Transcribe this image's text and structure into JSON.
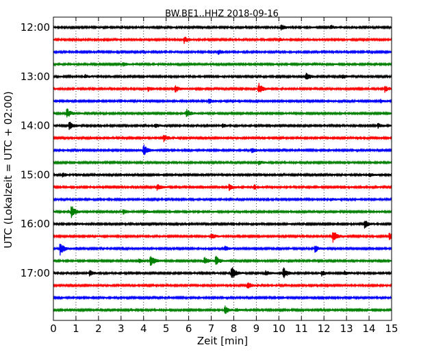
{
  "chart_data": {
    "type": "line",
    "title": "BW.BE1..HHZ 2018-09-16",
    "xlabel": "Zeit  [min]",
    "ylabel": "UTC (Lokalzeit = UTC + 02:00)",
    "xlim": [
      0,
      15
    ],
    "x_ticks": [
      "0",
      "1",
      "2",
      "3",
      "4",
      "5",
      "6",
      "7",
      "8",
      "9",
      "10",
      "11",
      "12",
      "13",
      "14",
      "15"
    ],
    "y_ticks": [
      "12:00",
      "13:00",
      "14:00",
      "15:00",
      "16:00",
      "17:00"
    ],
    "row_interval_minutes": 15,
    "grid": "vertical dotted at each minute",
    "series_colors": [
      "#000000",
      "#ff0000",
      "#0000ff",
      "#008000"
    ],
    "traces": [
      {
        "start": "12:00",
        "events": [
          {
            "t": 10.1,
            "a": 0.35
          },
          {
            "t": 12.3,
            "a": 0.3
          }
        ]
      },
      {
        "start": "12:15",
        "events": [
          {
            "t": 5.8,
            "a": 0.5
          },
          {
            "t": 10.0,
            "a": 0.2
          }
        ]
      },
      {
        "start": "12:30",
        "events": [
          {
            "t": 7.3,
            "a": 0.35
          }
        ]
      },
      {
        "start": "12:45",
        "events": [
          {
            "t": 3.1,
            "a": 0.2
          }
        ]
      },
      {
        "start": "13:00",
        "events": [
          {
            "t": 1.4,
            "a": 0.25
          },
          {
            "t": 11.2,
            "a": 0.6
          },
          {
            "t": 12.8,
            "a": 0.3
          }
        ]
      },
      {
        "start": "13:15",
        "events": [
          {
            "t": 4.2,
            "a": 0.3
          },
          {
            "t": 5.4,
            "a": 0.45
          },
          {
            "t": 9.1,
            "a": 0.8
          },
          {
            "t": 14.7,
            "a": 0.4
          }
        ]
      },
      {
        "start": "13:30",
        "events": [
          {
            "t": 6.9,
            "a": 0.3
          },
          {
            "t": 14.5,
            "a": 0.25
          }
        ]
      },
      {
        "start": "13:45",
        "events": [
          {
            "t": 0.6,
            "a": 0.65
          },
          {
            "t": 5.9,
            "a": 0.55
          }
        ]
      },
      {
        "start": "14:00",
        "events": [
          {
            "t": 0.7,
            "a": 0.55
          },
          {
            "t": 4.5,
            "a": 0.25
          },
          {
            "t": 7.5,
            "a": 0.25
          },
          {
            "t": 14.4,
            "a": 0.3
          }
        ]
      },
      {
        "start": "14:15",
        "events": [
          {
            "t": 4.9,
            "a": 0.45
          }
        ]
      },
      {
        "start": "14:30",
        "events": [
          {
            "t": 4.0,
            "a": 0.75
          },
          {
            "t": 8.8,
            "a": 0.3
          }
        ]
      },
      {
        "start": "14:45",
        "events": [
          {
            "t": 9.1,
            "a": 0.25
          }
        ]
      },
      {
        "start": "15:00",
        "events": [
          {
            "t": 0.4,
            "a": 0.25
          },
          {
            "t": 14.0,
            "a": 0.3
          }
        ]
      },
      {
        "start": "15:15",
        "events": [
          {
            "t": 4.6,
            "a": 0.4
          },
          {
            "t": 7.8,
            "a": 0.45
          },
          {
            "t": 8.9,
            "a": 0.3
          }
        ]
      },
      {
        "start": "15:30",
        "events": [
          {
            "t": 12.3,
            "a": 0.2
          }
        ]
      },
      {
        "start": "15:45",
        "events": [
          {
            "t": 0.8,
            "a": 0.85
          },
          {
            "t": 3.1,
            "a": 0.3
          },
          {
            "t": 4.0,
            "a": 0.25
          }
        ]
      },
      {
        "start": "16:00",
        "events": [
          {
            "t": 13.8,
            "a": 0.55
          },
          {
            "t": 1.0,
            "a": 0.15
          }
        ]
      },
      {
        "start": "16:15",
        "events": [
          {
            "t": 7.0,
            "a": 0.4
          },
          {
            "t": 12.4,
            "a": 0.95
          },
          {
            "t": 14.9,
            "a": 0.5
          }
        ]
      },
      {
        "start": "16:30",
        "events": [
          {
            "t": 0.3,
            "a": 0.85
          },
          {
            "t": 11.6,
            "a": 0.45
          },
          {
            "t": 7.6,
            "a": 0.3
          }
        ]
      },
      {
        "start": "16:45",
        "events": [
          {
            "t": 4.3,
            "a": 0.85
          },
          {
            "t": 6.7,
            "a": 0.45
          },
          {
            "t": 7.2,
            "a": 0.65
          },
          {
            "t": 3.8,
            "a": 0.3
          }
        ]
      },
      {
        "start": "17:00",
        "events": [
          {
            "t": 7.9,
            "a": 0.95
          },
          {
            "t": 10.2,
            "a": 0.75
          },
          {
            "t": 1.6,
            "a": 0.35
          },
          {
            "t": 9.4,
            "a": 0.35
          },
          {
            "t": 11.9,
            "a": 0.35
          },
          {
            "t": 12.9,
            "a": 0.3
          }
        ]
      },
      {
        "start": "17:15",
        "events": [
          {
            "t": 8.6,
            "a": 0.45
          }
        ]
      },
      {
        "start": "17:30",
        "events": []
      },
      {
        "start": "17:45",
        "events": [
          {
            "t": 7.6,
            "a": 0.55
          },
          {
            "t": 8.1,
            "a": 0.2
          }
        ]
      }
    ]
  }
}
